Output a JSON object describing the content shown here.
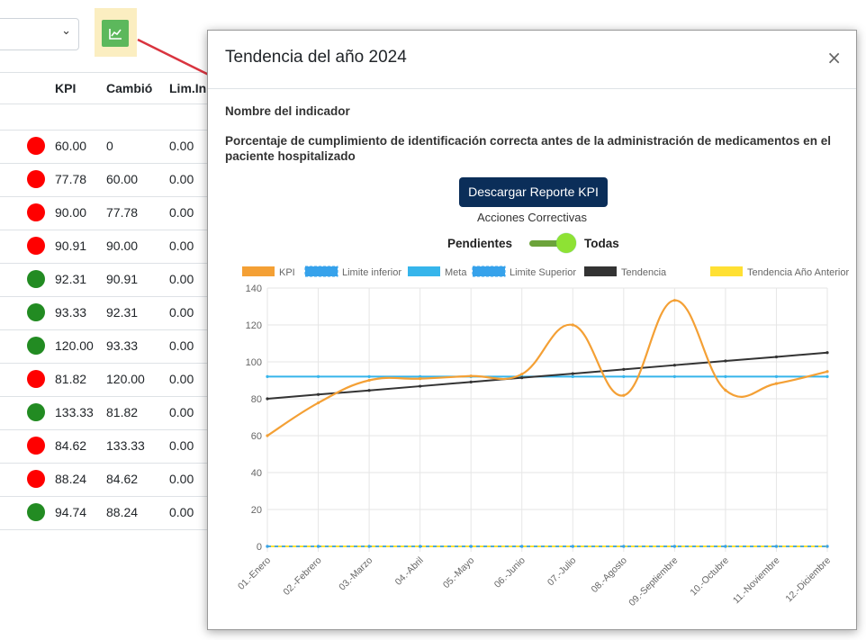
{
  "background": {
    "headers": [
      "KPI",
      "Cambió",
      "Lim.In"
    ],
    "rows": [
      {
        "kpi": "60.00",
        "cambio": "0",
        "lim": "0.00",
        "status": "red"
      },
      {
        "kpi": "77.78",
        "cambio": "60.00",
        "lim": "0.00",
        "status": "red"
      },
      {
        "kpi": "90.00",
        "cambio": "77.78",
        "lim": "0.00",
        "status": "red"
      },
      {
        "kpi": "90.91",
        "cambio": "90.00",
        "lim": "0.00",
        "status": "red"
      },
      {
        "kpi": "92.31",
        "cambio": "90.91",
        "lim": "0.00",
        "status": "green"
      },
      {
        "kpi": "93.33",
        "cambio": "92.31",
        "lim": "0.00",
        "status": "green"
      },
      {
        "kpi": "120.00",
        "cambio": "93.33",
        "lim": "0.00",
        "status": "green"
      },
      {
        "kpi": "81.82",
        "cambio": "120.00",
        "lim": "0.00",
        "status": "red"
      },
      {
        "kpi": "133.33",
        "cambio": "81.82",
        "lim": "0.00",
        "status": "green"
      },
      {
        "kpi": "84.62",
        "cambio": "133.33",
        "lim": "0.00",
        "status": "red"
      },
      {
        "kpi": "88.24",
        "cambio": "84.62",
        "lim": "0.00",
        "status": "red"
      },
      {
        "kpi": "94.74",
        "cambio": "88.24",
        "lim": "0.00",
        "status": "green"
      }
    ]
  },
  "colors": {
    "red": "#ff0000",
    "green": "#228b22",
    "accent_btn": "#0b2e59"
  },
  "modal": {
    "title": "Tendencia del año 2024",
    "close": "×",
    "indicator_label": "Nombre del indicador",
    "indicator_desc": "Porcentaje de cumplimiento de identificación correcta antes de la administración de medicamentos en el paciente hospitalizado",
    "download_btn": "Descargar Reporte KPI",
    "acciones": "Acciones Correctivas",
    "switch_left": "Pendientes",
    "switch_right": "Todas"
  },
  "chart_data": {
    "type": "line",
    "categories": [
      "01.-Enero",
      "02.-Febrero",
      "03.-Marzo",
      "04.-Abril",
      "05.-Mayo",
      "06.-Junio",
      "07.-Julio",
      "08.-Agosto",
      "09.-Septiembre",
      "10.-Octubre",
      "11.-Noviembre",
      "12.-Diciembre"
    ],
    "ylim": [
      0,
      140
    ],
    "yticks": [
      0,
      20,
      40,
      60,
      80,
      100,
      120,
      140
    ],
    "grid": true,
    "legend": "top",
    "series": [
      {
        "name": "KPI",
        "color": "#f4a035",
        "style": "smooth",
        "values": [
          60,
          77.78,
          90,
          90.91,
          92.31,
          93.33,
          120,
          81.82,
          133.33,
          84.62,
          88.24,
          94.74
        ]
      },
      {
        "name": "Limite inferior",
        "color": "#36a2eb",
        "style": "dashed",
        "values": [
          0,
          0,
          0,
          0,
          0,
          0,
          0,
          0,
          0,
          0,
          0,
          0
        ]
      },
      {
        "name": "Meta",
        "color": "#36b5eb",
        "style": "solid",
        "values": [
          92,
          92,
          92,
          92,
          92,
          92,
          92,
          92,
          92,
          92,
          92,
          92
        ]
      },
      {
        "name": "Limite Superior",
        "color": "#36a2eb",
        "style": "dashed",
        "values": [
          0,
          0,
          0,
          0,
          0,
          0,
          0,
          0,
          0,
          0,
          0,
          0
        ]
      },
      {
        "name": "Tendencia",
        "color": "#333333",
        "style": "solid",
        "values": [
          80,
          82.3,
          84.5,
          86.8,
          89.1,
          91.4,
          93.6,
          95.9,
          98.2,
          100.5,
          102.7,
          105
        ]
      },
      {
        "name": "Tendencia Año Anterior",
        "color": "#ffe033",
        "style": "solid",
        "values": [
          0,
          0,
          0,
          0,
          0,
          0,
          0,
          0,
          0,
          0,
          0,
          0
        ]
      }
    ]
  }
}
